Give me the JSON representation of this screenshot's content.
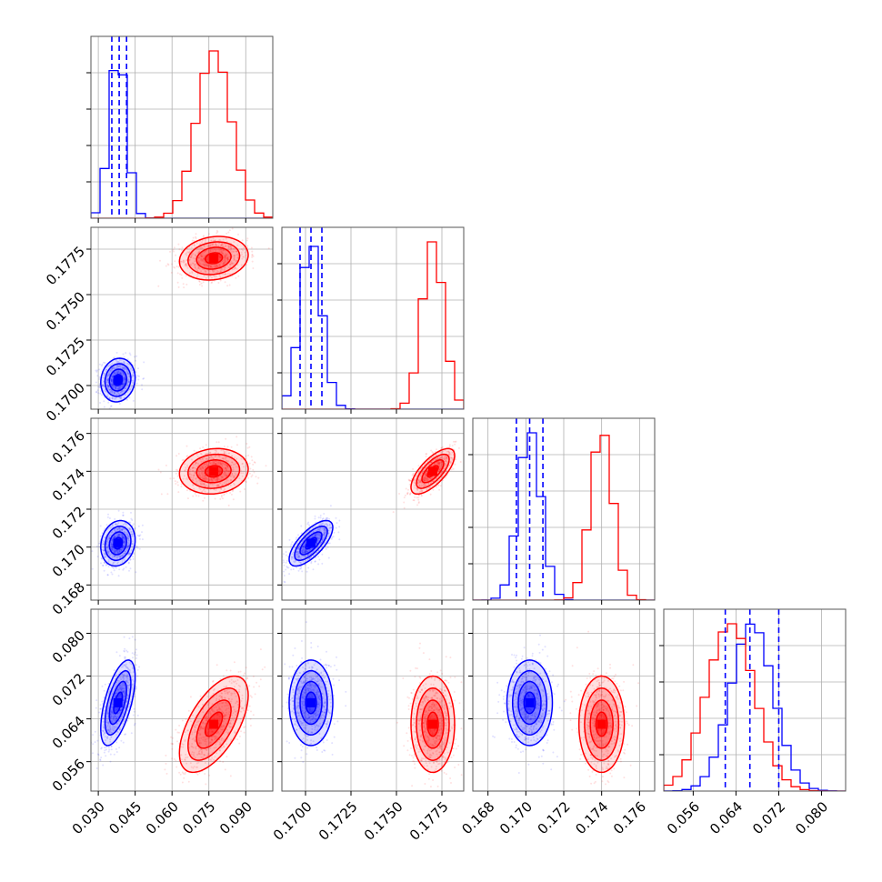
{
  "chart_data": {
    "type": "scatter",
    "subtype": "corner-plot",
    "title": "",
    "grid": true,
    "legend": "none",
    "colors": {
      "series_a": "#0000ff",
      "series_b": "#ff0000"
    },
    "series": [
      {
        "color": "#0000ff",
        "mean": [
          0.038,
          0.1703,
          0.1702,
          0.067
        ],
        "sd": [
          0.0035,
          0.0006,
          0.0006,
          0.004
        ],
        "corr": {
          "1_2": 0.7,
          "0_3": 0.6,
          "0_1": 0.1,
          "0_2": 0.15,
          "1_3": 0.0,
          "2_3": 0.0
        }
      },
      {
        "color": "#ff0000",
        "mean": [
          0.077,
          0.177,
          0.174,
          0.063
        ],
        "sd": [
          0.007,
          0.0006,
          0.0006,
          0.0045
        ],
        "corr": {
          "1_2": 0.7,
          "0_3": 0.6,
          "0_1": 0.15,
          "0_2": 0.1,
          "1_3": 0.0,
          "2_3": 0.0
        }
      }
    ],
    "quantiles": [
      [
        0.0355,
        0.0385,
        0.0415
      ],
      [
        0.1697,
        0.1703,
        0.1709
      ],
      [
        0.1695,
        0.1702,
        0.1709
      ],
      [
        0.062,
        0.0666,
        0.072
      ]
    ],
    "params": [
      {
        "range": [
          0.027,
          0.101
        ],
        "ticks": [
          0.03,
          0.045,
          0.06,
          0.075,
          0.09
        ],
        "tick_labels": [
          "0.030",
          "0.045",
          "0.060",
          "0.075",
          "0.090"
        ]
      },
      {
        "range": [
          0.1687,
          0.1787
        ],
        "ticks": [
          0.17,
          0.1725,
          0.175,
          0.1775
        ],
        "tick_labels": [
          "0.1700",
          "0.1725",
          "0.1750",
          "0.1775"
        ]
      },
      {
        "range": [
          0.1672,
          0.1768
        ],
        "ticks": [
          0.168,
          0.17,
          0.172,
          0.174,
          0.176
        ],
        "tick_labels": [
          "0.168",
          "0.170",
          "0.172",
          "0.174",
          "0.176"
        ]
      },
      {
        "range": [
          0.0505,
          0.0845
        ],
        "ticks": [
          0.056,
          0.064,
          0.072,
          0.08
        ],
        "tick_labels": [
          "0.056",
          "0.064",
          "0.072",
          "0.080"
        ]
      }
    ]
  }
}
